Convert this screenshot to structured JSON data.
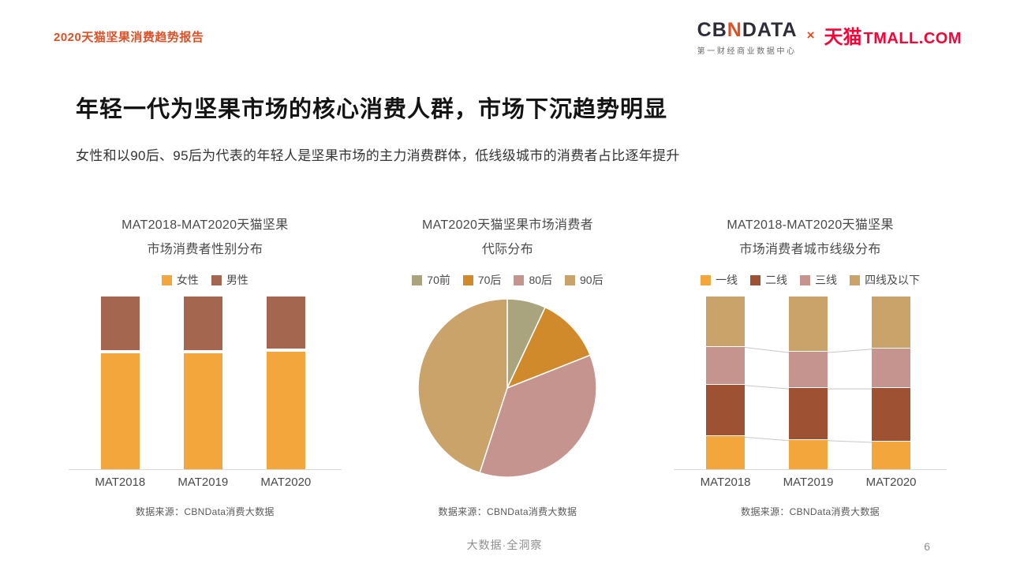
{
  "header": {
    "report_title": "2020天猫坚果消费趋势报告",
    "logo": {
      "cbn_prefix": "CB",
      "cbn_n": "N",
      "cbn_suffix": "DATA",
      "cbn_subtitle": "第一财经商业数据中心",
      "separator": "×",
      "tmall_cn": "天猫",
      "tmall_en": "TMALL.COM"
    }
  },
  "colors": {
    "accent_orange": "#E04F26",
    "tmall_red": "#FF0036"
  },
  "main": {
    "title": "年轻一代为坚果市场的核心消费人群，市场下沉趋势明显",
    "subtitle": "女性和以90后、95后为代表的年轻人是坚果市场的主力消费群体，低线级城市的消费者占比逐年提升"
  },
  "chart_data": [
    {
      "type": "bar",
      "stacked": true,
      "percent": true,
      "title_lines": [
        "MAT2018-MAT2020天猫坚果",
        "市场消费者性别分布"
      ],
      "categories": [
        "MAT2018",
        "MAT2019",
        "MAT2020"
      ],
      "series": [
        {
          "name": "女性",
          "color": "#F2A63B",
          "values": [
            67,
            67,
            68
          ]
        },
        {
          "name": "男性",
          "color": "#A56650",
          "values": [
            33,
            33,
            32
          ]
        }
      ],
      "ylim": [
        0,
        100
      ],
      "grid": false,
      "legend_position": "top",
      "segment_gap": 4,
      "connectors": false,
      "source": "数据来源：CBNData消费大数据"
    },
    {
      "type": "pie",
      "title_lines": [
        "MAT2020天猫坚果市场消费者",
        "代际分布"
      ],
      "legend_position": "top",
      "slices": [
        {
          "name": "70前",
          "color": "#A9A47D",
          "value": 7
        },
        {
          "name": "70后",
          "color": "#D08A2B",
          "value": 12
        },
        {
          "name": "80后",
          "color": "#C5948E",
          "value": 36
        },
        {
          "name": "90后",
          "color": "#C9A369",
          "value": 45
        }
      ],
      "source": "数据来源：CBNData消费大数据"
    },
    {
      "type": "bar",
      "stacked": true,
      "percent": true,
      "title_lines": [
        "MAT2018-MAT2020天猫坚果",
        "市场消费者城市线级分布"
      ],
      "categories": [
        "MAT2018",
        "MAT2019",
        "MAT2020"
      ],
      "series": [
        {
          "name": "一线",
          "color": "#F2A63B",
          "values": [
            19,
            17,
            16
          ]
        },
        {
          "name": "二线",
          "color": "#9E5233",
          "values": [
            30,
            30,
            31
          ]
        },
        {
          "name": "三线",
          "color": "#C5948E",
          "values": [
            22,
            21,
            23
          ]
        },
        {
          "name": "四线及以下",
          "color": "#C9A369",
          "values": [
            29,
            32,
            30
          ]
        }
      ],
      "ylim": [
        0,
        100
      ],
      "grid": false,
      "legend_position": "top",
      "segment_gap": 1,
      "connectors": true,
      "source": "数据来源：CBNData消费大数据"
    }
  ],
  "footer": {
    "slogan": "大数据·全洞察",
    "page_number": "6"
  }
}
